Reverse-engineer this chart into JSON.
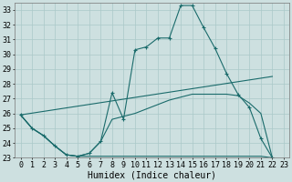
{
  "xlabel": "Humidex (Indice chaleur)",
  "xlim": [
    -0.5,
    23.5
  ],
  "ylim": [
    23,
    33.5
  ],
  "yticks": [
    23,
    24,
    25,
    26,
    27,
    28,
    29,
    30,
    31,
    32,
    33
  ],
  "xticks": [
    0,
    1,
    2,
    3,
    4,
    5,
    6,
    7,
    8,
    9,
    10,
    11,
    12,
    13,
    14,
    15,
    16,
    17,
    18,
    19,
    20,
    21,
    22,
    23
  ],
  "bg_color": "#cde0e0",
  "grid_color": "#aac8c8",
  "line_color": "#1a6b6b",
  "curve1_x": [
    0,
    1,
    2,
    3,
    4,
    5,
    6,
    7,
    8,
    9,
    10,
    11,
    12,
    13,
    14,
    15,
    16,
    17,
    18,
    19,
    20,
    21,
    22
  ],
  "curve1_y": [
    25.9,
    25.0,
    24.5,
    23.8,
    23.2,
    23.1,
    23.3,
    24.1,
    27.4,
    25.6,
    30.3,
    30.5,
    31.1,
    31.1,
    33.3,
    33.3,
    31.8,
    30.4,
    28.7,
    27.3,
    26.4,
    24.3,
    23.0
  ],
  "curve2_x": [
    0,
    1,
    2,
    3,
    4,
    5,
    6,
    7,
    8,
    9,
    10,
    11,
    12,
    13,
    14,
    15,
    16,
    17,
    18,
    19,
    20,
    21,
    22
  ],
  "curve2_y": [
    25.9,
    25.0,
    24.5,
    23.8,
    23.2,
    23.1,
    23.3,
    24.1,
    25.6,
    25.8,
    26.0,
    26.3,
    26.6,
    26.9,
    27.1,
    27.3,
    27.3,
    27.3,
    27.3,
    27.2,
    26.7,
    26.0,
    23.0
  ],
  "curve3_x": [
    0,
    1,
    2,
    3,
    4,
    5,
    6,
    7,
    8,
    9,
    10,
    11,
    12,
    13,
    14,
    15,
    16,
    17,
    18,
    19,
    20,
    21,
    22
  ],
  "curve3_y": [
    25.9,
    25.0,
    24.5,
    23.8,
    23.2,
    23.1,
    23.1,
    23.1,
    23.1,
    23.1,
    23.1,
    23.1,
    23.1,
    23.1,
    23.1,
    23.1,
    23.1,
    23.1,
    23.1,
    23.1,
    23.1,
    23.1,
    23.0
  ],
  "curve4_x": [
    0,
    22
  ],
  "curve4_y": [
    25.9,
    28.5
  ],
  "font_family": "monospace",
  "label_fontsize": 7,
  "tick_fontsize": 6
}
